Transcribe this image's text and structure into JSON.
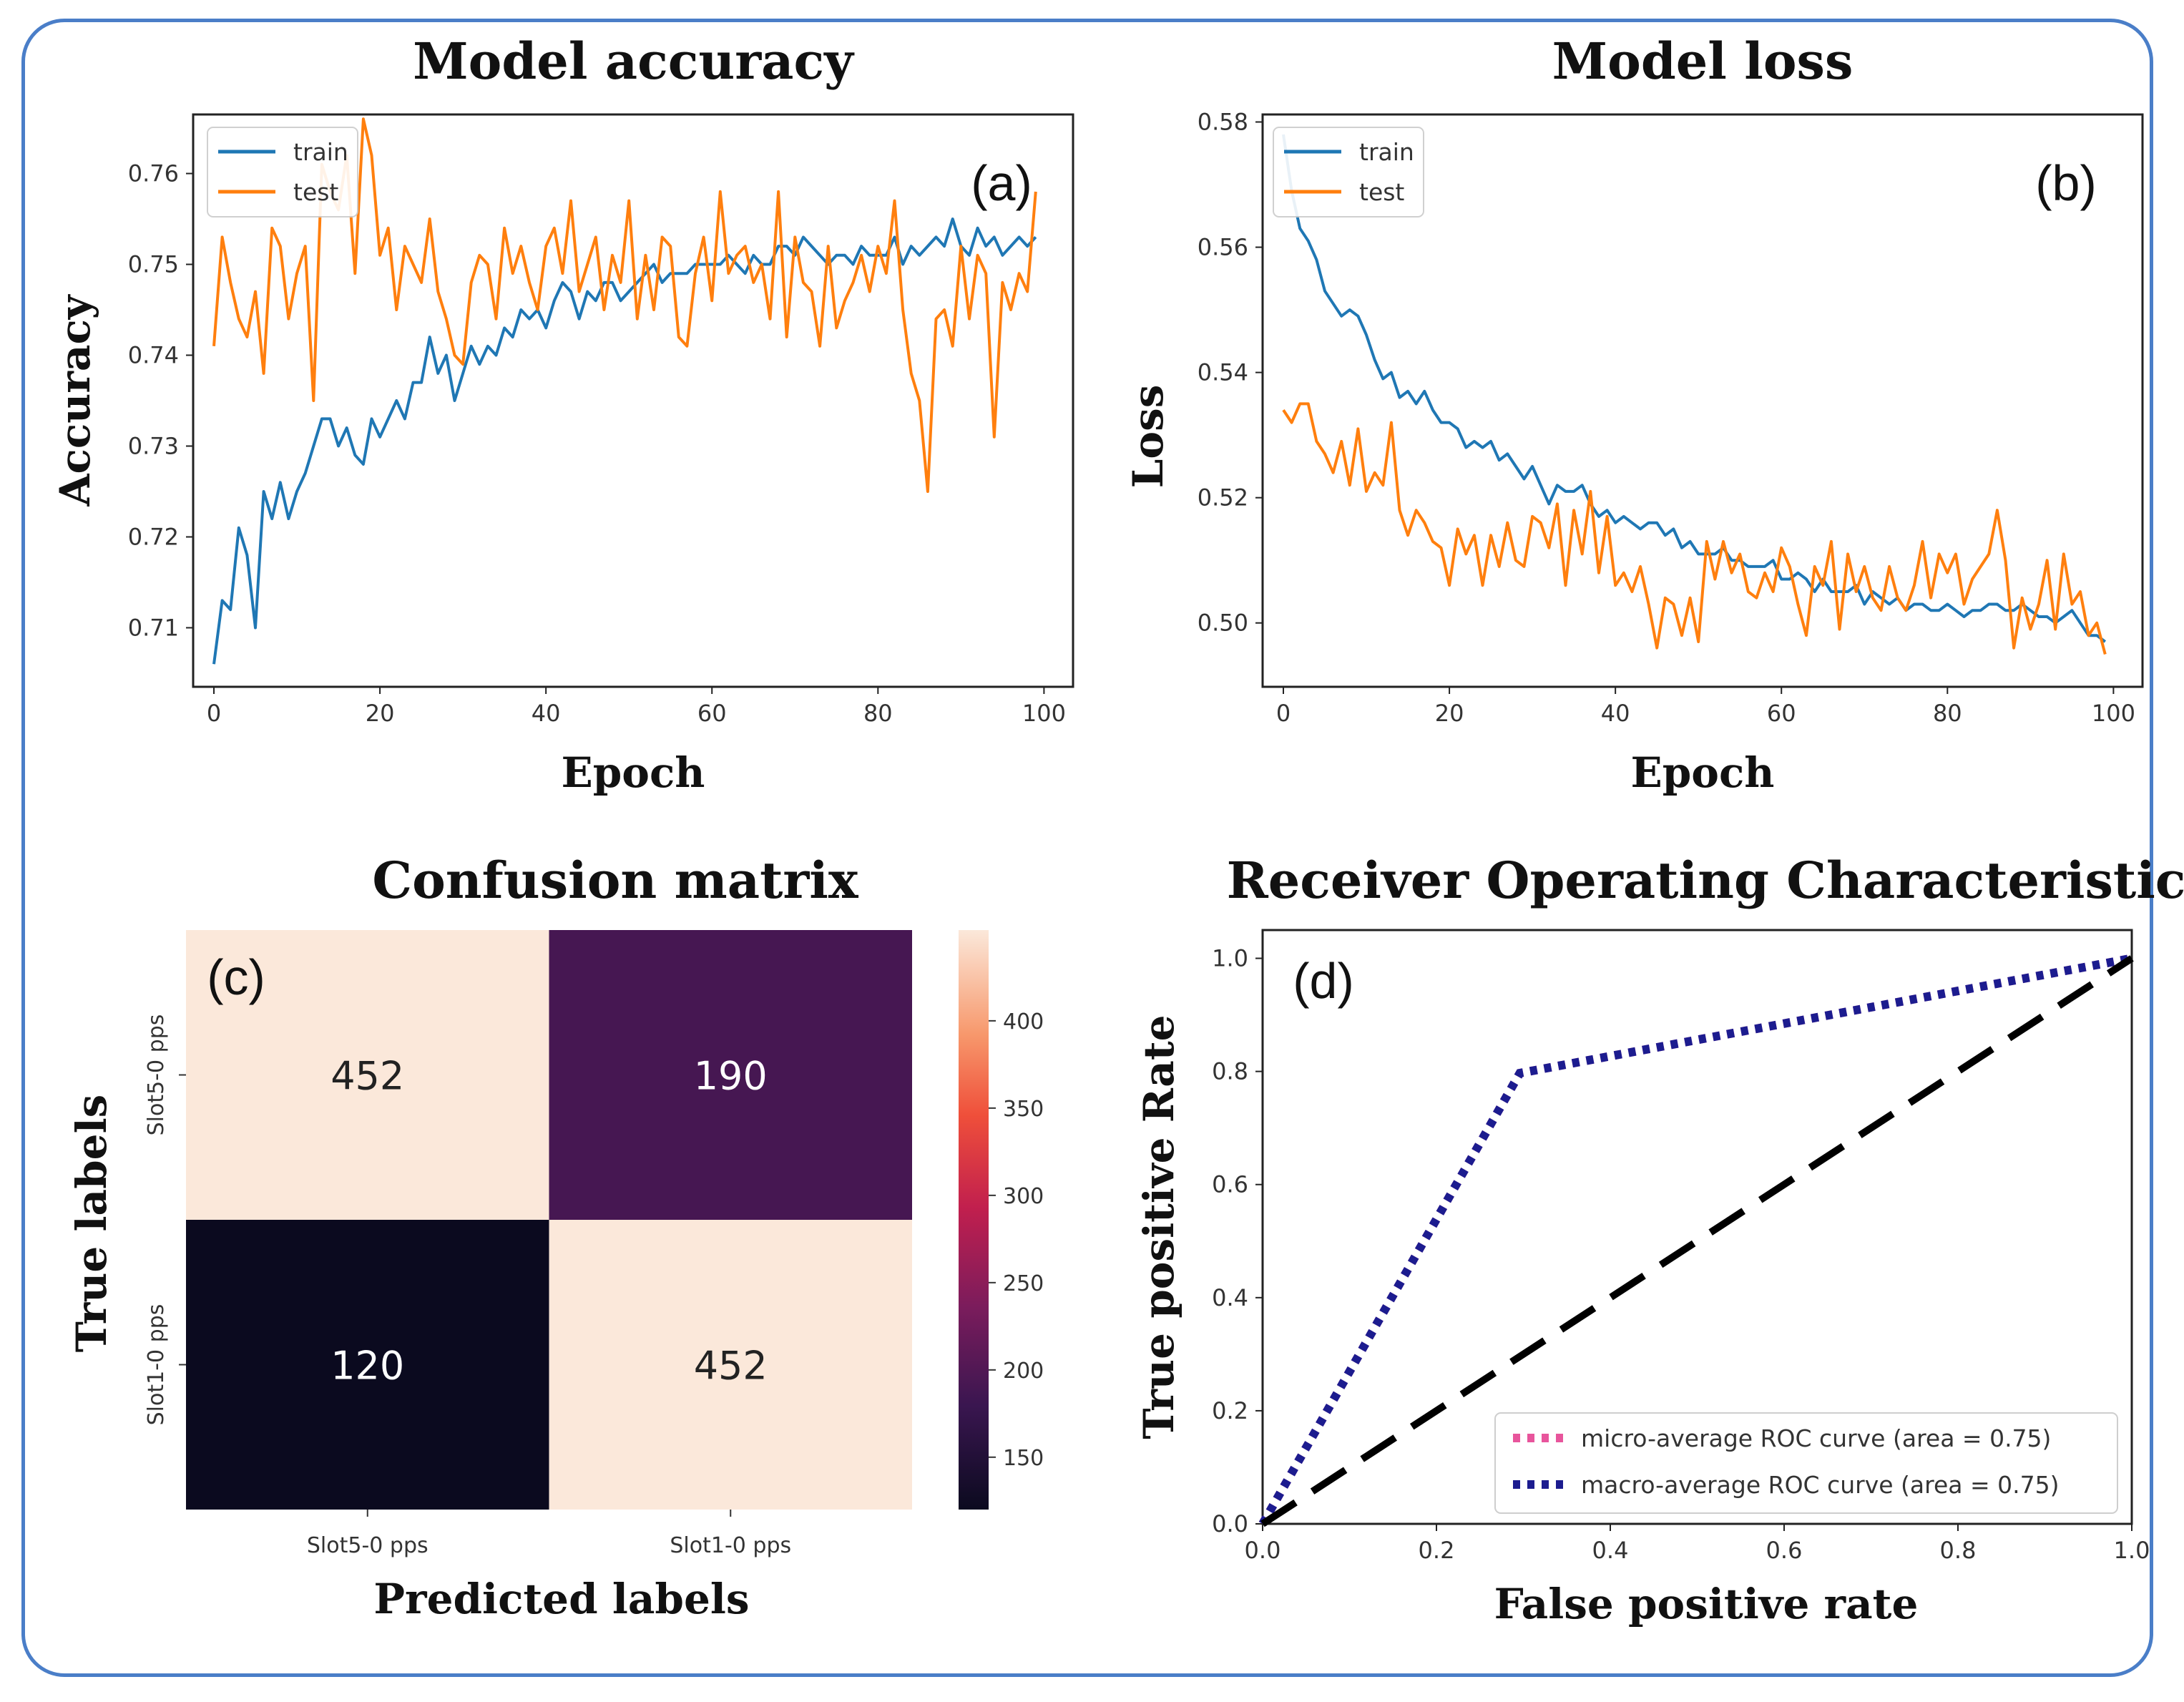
{
  "chart_data": [
    {
      "type": "line",
      "panel_tag": "(a)",
      "title": "Model accuracy",
      "xlabel": "Epoch",
      "ylabel": "Accuracy",
      "xlim": [
        -2.5,
        103.5
      ],
      "ylim": [
        0.7035,
        0.7665
      ],
      "xticks": [
        0,
        20,
        40,
        60,
        80,
        100
      ],
      "yticks": [
        0.71,
        0.72,
        0.73,
        0.74,
        0.75,
        0.76
      ],
      "ytick_labels": [
        "0.71",
        "0.72",
        "0.73",
        "0.74",
        "0.75",
        "0.76"
      ],
      "legend": "top-left",
      "series": [
        {
          "name": "train",
          "color": "#1f77b4",
          "x_start": 0,
          "x_step": 1,
          "values": [
            0.706,
            0.713,
            0.712,
            0.721,
            0.718,
            0.71,
            0.725,
            0.722,
            0.726,
            0.722,
            0.725,
            0.727,
            0.73,
            0.733,
            0.733,
            0.73,
            0.732,
            0.729,
            0.728,
            0.733,
            0.731,
            0.733,
            0.735,
            0.733,
            0.737,
            0.737,
            0.742,
            0.738,
            0.74,
            0.735,
            0.738,
            0.741,
            0.739,
            0.741,
            0.74,
            0.743,
            0.742,
            0.745,
            0.744,
            0.745,
            0.743,
            0.746,
            0.748,
            0.747,
            0.744,
            0.747,
            0.746,
            0.748,
            0.748,
            0.746,
            0.747,
            0.748,
            0.749,
            0.75,
            0.748,
            0.749,
            0.749,
            0.749,
            0.75,
            0.75,
            0.75,
            0.75,
            0.751,
            0.75,
            0.749,
            0.751,
            0.75,
            0.75,
            0.752,
            0.752,
            0.751,
            0.753,
            0.752,
            0.751,
            0.75,
            0.751,
            0.751,
            0.75,
            0.752,
            0.751,
            0.751,
            0.751,
            0.753,
            0.75,
            0.752,
            0.751,
            0.752,
            0.753,
            0.752,
            0.755,
            0.752,
            0.751,
            0.754,
            0.752,
            0.753,
            0.751,
            0.752,
            0.753,
            0.752,
            0.753
          ]
        },
        {
          "name": "test",
          "color": "#ff7f0e",
          "x_start": 0,
          "x_step": 1,
          "values": [
            0.741,
            0.753,
            0.748,
            0.744,
            0.742,
            0.747,
            0.738,
            0.754,
            0.752,
            0.744,
            0.749,
            0.752,
            0.735,
            0.761,
            0.758,
            0.756,
            0.762,
            0.749,
            0.766,
            0.762,
            0.751,
            0.754,
            0.745,
            0.752,
            0.75,
            0.748,
            0.755,
            0.747,
            0.744,
            0.74,
            0.739,
            0.748,
            0.751,
            0.75,
            0.744,
            0.754,
            0.749,
            0.752,
            0.748,
            0.745,
            0.752,
            0.754,
            0.749,
            0.757,
            0.747,
            0.75,
            0.753,
            0.745,
            0.751,
            0.748,
            0.757,
            0.744,
            0.751,
            0.745,
            0.753,
            0.752,
            0.742,
            0.741,
            0.749,
            0.753,
            0.746,
            0.758,
            0.749,
            0.751,
            0.752,
            0.748,
            0.75,
            0.744,
            0.758,
            0.742,
            0.753,
            0.748,
            0.747,
            0.741,
            0.752,
            0.743,
            0.746,
            0.748,
            0.751,
            0.747,
            0.752,
            0.749,
            0.757,
            0.745,
            0.738,
            0.735,
            0.725,
            0.744,
            0.745,
            0.741,
            0.752,
            0.744,
            0.751,
            0.749,
            0.731,
            0.748,
            0.745,
            0.749,
            0.747,
            0.758
          ]
        }
      ]
    },
    {
      "type": "line",
      "panel_tag": "(b)",
      "title": "Model loss",
      "xlabel": "Epoch",
      "ylabel": "Loss",
      "xlim": [
        -2.5,
        103.5
      ],
      "ylim": [
        0.4898,
        0.5812
      ],
      "xticks": [
        0,
        20,
        40,
        60,
        80,
        100
      ],
      "yticks": [
        0.5,
        0.52,
        0.54,
        0.56,
        0.58
      ],
      "ytick_labels": [
        "0.50",
        "0.52",
        "0.54",
        "0.56",
        "0.58"
      ],
      "legend": "top-left",
      "series": [
        {
          "name": "train",
          "color": "#1f77b4",
          "x_start": 0,
          "x_step": 1,
          "values": [
            0.578,
            0.569,
            0.563,
            0.561,
            0.558,
            0.553,
            0.551,
            0.549,
            0.55,
            0.549,
            0.546,
            0.542,
            0.539,
            0.54,
            0.536,
            0.537,
            0.535,
            0.537,
            0.534,
            0.532,
            0.532,
            0.531,
            0.528,
            0.529,
            0.528,
            0.529,
            0.526,
            0.527,
            0.525,
            0.523,
            0.525,
            0.522,
            0.519,
            0.522,
            0.521,
            0.521,
            0.522,
            0.519,
            0.517,
            0.518,
            0.516,
            0.517,
            0.516,
            0.515,
            0.516,
            0.516,
            0.514,
            0.515,
            0.512,
            0.513,
            0.511,
            0.511,
            0.511,
            0.512,
            0.51,
            0.51,
            0.509,
            0.509,
            0.509,
            0.51,
            0.507,
            0.507,
            0.508,
            0.507,
            0.505,
            0.507,
            0.505,
            0.505,
            0.505,
            0.506,
            0.503,
            0.505,
            0.504,
            0.503,
            0.504,
            0.502,
            0.503,
            0.503,
            0.502,
            0.502,
            0.503,
            0.502,
            0.501,
            0.502,
            0.502,
            0.503,
            0.503,
            0.502,
            0.502,
            0.503,
            0.502,
            0.501,
            0.501,
            0.5,
            0.501,
            0.502,
            0.5,
            0.498,
            0.498,
            0.497
          ]
        },
        {
          "name": "test",
          "color": "#ff7f0e",
          "x_start": 0,
          "x_step": 1,
          "values": [
            0.534,
            0.532,
            0.535,
            0.535,
            0.529,
            0.527,
            0.524,
            0.529,
            0.522,
            0.531,
            0.521,
            0.524,
            0.522,
            0.532,
            0.518,
            0.514,
            0.518,
            0.516,
            0.513,
            0.512,
            0.506,
            0.515,
            0.511,
            0.514,
            0.506,
            0.514,
            0.509,
            0.516,
            0.51,
            0.509,
            0.517,
            0.516,
            0.512,
            0.519,
            0.506,
            0.518,
            0.511,
            0.521,
            0.508,
            0.517,
            0.506,
            0.508,
            0.505,
            0.509,
            0.503,
            0.496,
            0.504,
            0.503,
            0.498,
            0.504,
            0.497,
            0.513,
            0.507,
            0.513,
            0.508,
            0.511,
            0.505,
            0.504,
            0.508,
            0.505,
            0.512,
            0.509,
            0.503,
            0.498,
            0.509,
            0.506,
            0.513,
            0.499,
            0.511,
            0.505,
            0.509,
            0.504,
            0.502,
            0.509,
            0.504,
            0.502,
            0.506,
            0.513,
            0.504,
            0.511,
            0.508,
            0.511,
            0.503,
            0.507,
            0.509,
            0.511,
            0.518,
            0.51,
            0.496,
            0.504,
            0.499,
            0.503,
            0.51,
            0.499,
            0.511,
            0.503,
            0.505,
            0.498,
            0.5,
            0.495
          ]
        }
      ]
    },
    {
      "type": "heatmap",
      "panel_tag": "(c)",
      "title": "Confusion matrix",
      "xlabel": "Predicted labels",
      "ylabel": "True labels",
      "x_categories": [
        "Slot5-0 pps",
        "Slot1-0 pps"
      ],
      "y_categories": [
        "Slot5-0 pps",
        "Slot1-0 pps"
      ],
      "values": [
        [
          452,
          190
        ],
        [
          120,
          452
        ]
      ],
      "colorbar": {
        "min": 120,
        "max": 452,
        "ticks": [
          150,
          200,
          250,
          300,
          350,
          400
        ]
      }
    },
    {
      "type": "line",
      "panel_tag": "(d)",
      "title": "Receiver Operating Characteristic",
      "xlabel": "False positive rate",
      "ylabel": "True positive Rate",
      "xlim": [
        0.0,
        1.0
      ],
      "ylim": [
        0.0,
        1.05
      ],
      "xticks": [
        0.0,
        0.2,
        0.4,
        0.6,
        0.8,
        1.0
      ],
      "yticks": [
        0.0,
        0.2,
        0.4,
        0.6,
        0.8,
        1.0
      ],
      "legend": "lower-right",
      "series": [
        {
          "name": "micro-average ROC curve (area = 0.75)",
          "color": "#e8559c",
          "x": [
            0.0,
            0.296,
            1.0
          ],
          "y": [
            0.0,
            0.797,
            1.0
          ]
        },
        {
          "name": "macro-average ROC curve (area = 0.75)",
          "color": "#1c1c8f",
          "x": [
            0.0,
            0.296,
            1.0
          ],
          "y": [
            0.0,
            0.797,
            1.0
          ]
        },
        {
          "name": "",
          "color": "#000000",
          "x": [
            0.0,
            1.0
          ],
          "y": [
            0.0,
            1.0
          ]
        }
      ]
    }
  ]
}
